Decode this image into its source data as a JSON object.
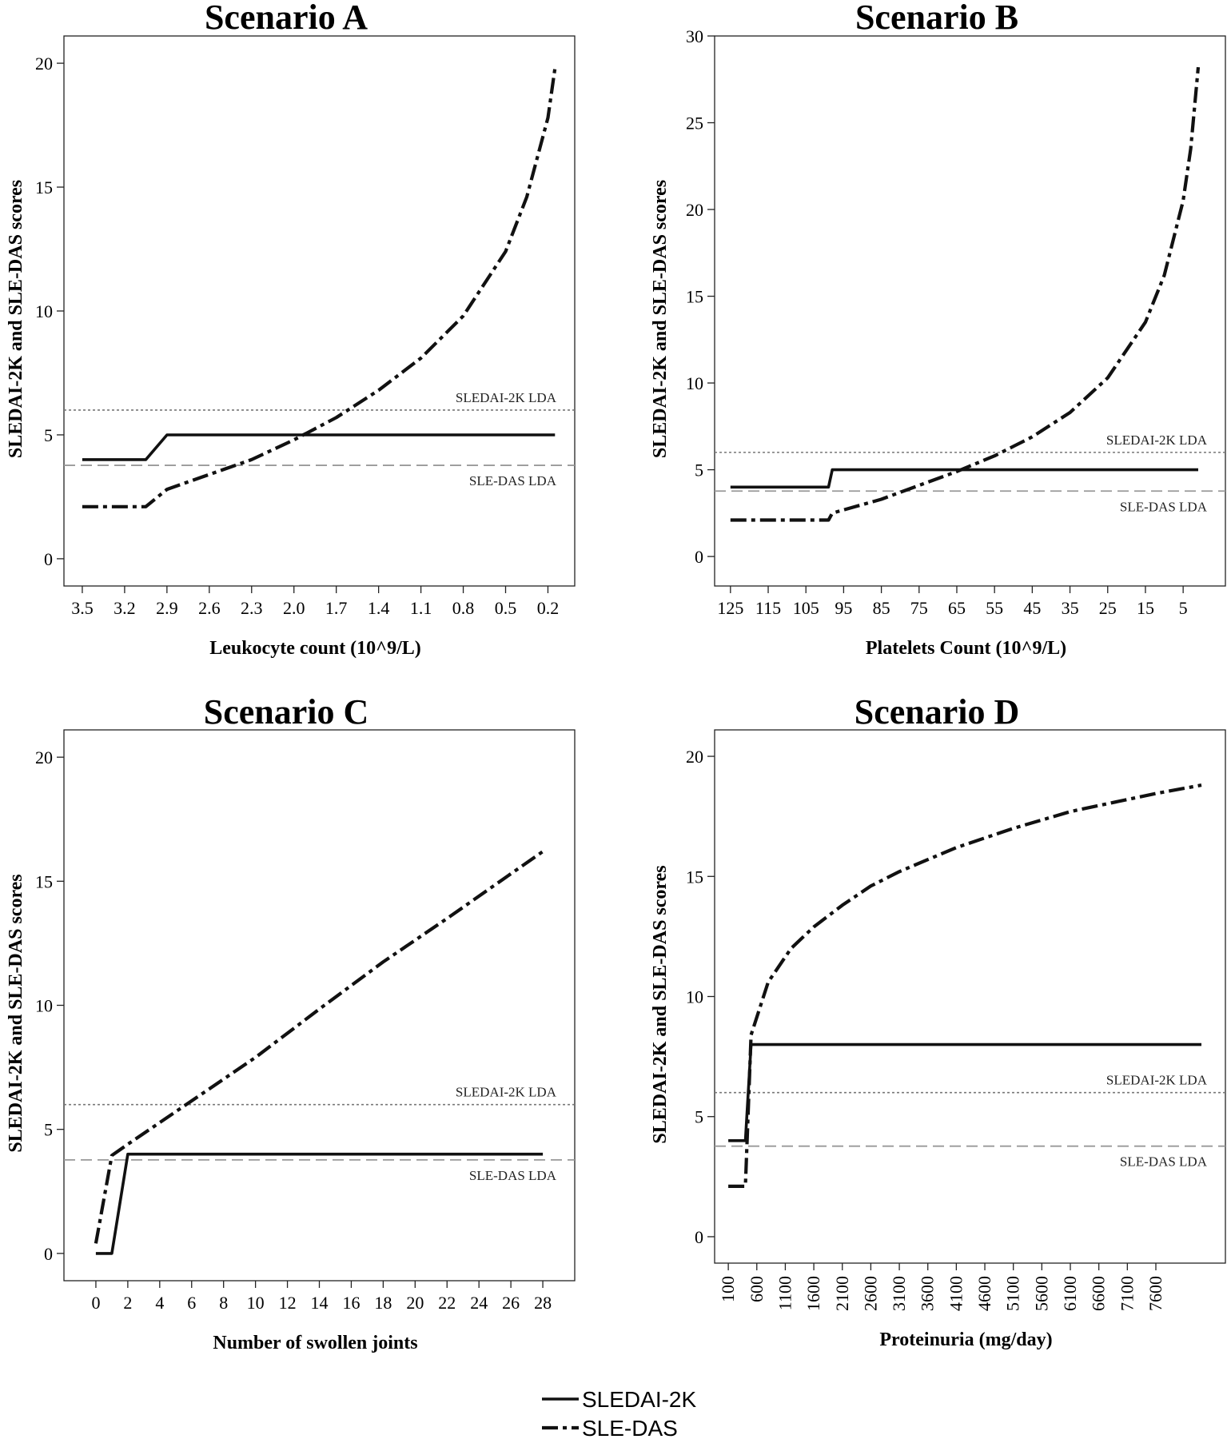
{
  "legend": {
    "items": [
      {
        "label": "SLEDAI-2K",
        "style": "solid"
      },
      {
        "label": "SLE-DAS",
        "style": "dash-dot"
      }
    ]
  },
  "chart_data": [
    {
      "type": "line",
      "title": "Scenario A",
      "xlabel": "Leukocyte count (10^9/L)",
      "ylabel": "SLEDAI-2K and SLE-DAS scores",
      "x_reversed": true,
      "xlim": [
        3.63,
        0.01
      ],
      "ylim": [
        -1.1,
        21.1
      ],
      "xticks": [
        3.5,
        3.2,
        2.9,
        2.6,
        2.3,
        2.0,
        1.7,
        1.4,
        1.1,
        0.8,
        0.5,
        0.2
      ],
      "xtick_labels": [
        "3.5",
        "3.2",
        "2.9",
        "2.6",
        "2.3",
        "2.0",
        "1.7",
        "1.4",
        "1.1",
        "0.8",
        "0.5",
        "0.2"
      ],
      "yticks": [
        0,
        5,
        10,
        15,
        20
      ],
      "ytick_labels": [
        "0",
        "5",
        "10",
        "15",
        "20"
      ],
      "series": [
        {
          "name": "SLEDAI-2K",
          "style": "solid",
          "x": [
            3.5,
            3.05,
            2.9,
            0.15
          ],
          "y": [
            4,
            4,
            5,
            5
          ]
        },
        {
          "name": "SLE-DAS",
          "style": "dash-dot",
          "x": [
            3.5,
            3.05,
            2.9,
            2.6,
            2.3,
            2.0,
            1.7,
            1.4,
            1.1,
            0.8,
            0.5,
            0.35,
            0.2,
            0.15
          ],
          "y": [
            2.1,
            2.1,
            2.8,
            3.4,
            4.0,
            4.8,
            5.7,
            6.8,
            8.1,
            9.8,
            12.4,
            14.6,
            17.8,
            19.8
          ]
        }
      ],
      "lda_lines": [
        {
          "label": "SLEDAI-2K LDA",
          "y": 6.0,
          "style": "dotted"
        },
        {
          "label": "SLE-DAS LDA",
          "y": 3.77,
          "style": "dashed"
        }
      ]
    },
    {
      "type": "line",
      "title": "Scenario B",
      "xlabel": "Platelets Count (10^9/L)",
      "ylabel": "SLEDAI-2K and SLE-DAS scores",
      "x_reversed": true,
      "xlim": [
        129.2,
        -6.2
      ],
      "ylim": [
        -1.7,
        30.0
      ],
      "xticks": [
        125,
        115,
        105,
        95,
        85,
        75,
        65,
        55,
        45,
        35,
        25,
        15,
        5
      ],
      "xtick_labels": [
        "125",
        "115",
        "105",
        "95",
        "85",
        "75",
        "65",
        "55",
        "45",
        "35",
        "25",
        "15",
        "5"
      ],
      "yticks": [
        0,
        5,
        10,
        15,
        20,
        25,
        30
      ],
      "ytick_labels": [
        "0",
        "5",
        "10",
        "15",
        "20",
        "25",
        "30"
      ],
      "series": [
        {
          "name": "SLEDAI-2K",
          "style": "solid",
          "x": [
            125,
            99,
            98,
            1
          ],
          "y": [
            4,
            4,
            5,
            5
          ]
        },
        {
          "name": "SLE-DAS",
          "style": "dash-dot",
          "x": [
            125,
            99,
            98,
            85,
            75,
            65,
            55,
            45,
            35,
            25,
            15,
            10,
            5,
            3,
            1
          ],
          "y": [
            2.1,
            2.1,
            2.5,
            3.3,
            4.1,
            4.9,
            5.8,
            6.9,
            8.3,
            10.3,
            13.5,
            16.2,
            20.5,
            23.5,
            28.2
          ]
        }
      ],
      "lda_lines": [
        {
          "label": "SLEDAI-2K LDA",
          "y": 6.0,
          "style": "dotted"
        },
        {
          "label": "SLE-DAS LDA",
          "y": 3.77,
          "style": "dashed"
        }
      ]
    },
    {
      "type": "line",
      "title": "Scenario C",
      "xlabel": "Number of swollen joints",
      "ylabel": "SLEDAI-2K and SLE-DAS scores",
      "x_reversed": false,
      "xlim": [
        -2.0,
        30.0
      ],
      "ylim": [
        -1.1,
        21.1
      ],
      "xticks": [
        0,
        2,
        4,
        6,
        8,
        10,
        12,
        14,
        16,
        18,
        20,
        22,
        24,
        26,
        28
      ],
      "xtick_labels": [
        "0",
        "2",
        "4",
        "6",
        "8",
        "10",
        "12",
        "14",
        "16",
        "18",
        "20",
        "22",
        "24",
        "26",
        "28"
      ],
      "yticks": [
        0,
        5,
        10,
        15,
        20
      ],
      "ytick_labels": [
        "0",
        "5",
        "10",
        "15",
        "20"
      ],
      "series": [
        {
          "name": "SLEDAI-2K",
          "style": "solid",
          "x": [
            0,
            1,
            2,
            28
          ],
          "y": [
            0,
            0,
            4,
            4
          ]
        },
        {
          "name": "SLE-DAS",
          "style": "dash-dot",
          "x": [
            0,
            1,
            2,
            6,
            10,
            14,
            18,
            22,
            26,
            28
          ],
          "y": [
            0.4,
            3.95,
            4.4,
            6.15,
            7.9,
            9.85,
            11.75,
            13.5,
            15.3,
            16.2
          ]
        }
      ],
      "lda_lines": [
        {
          "label": "SLEDAI-2K LDA",
          "y": 6.0,
          "style": "dotted"
        },
        {
          "label": "SLE-DAS LDA",
          "y": 3.77,
          "style": "dashed"
        }
      ]
    },
    {
      "type": "line",
      "title": "Scenario D",
      "xlabel": "Proteinuria (mg/day)",
      "ylabel": "SLEDAI-2K and SLE-DAS scores",
      "x_reversed": false,
      "xlim": [
        -140,
        8820
      ],
      "ylim": [
        -1.1,
        21.1
      ],
      "xticks": [
        100,
        600,
        1100,
        1600,
        2100,
        2600,
        3100,
        3600,
        4100,
        4600,
        5100,
        5600,
        6100,
        6600,
        7100,
        7600
      ],
      "xtick_labels": [
        "100",
        "600",
        "1100",
        "1600",
        "2100",
        "2600",
        "3100",
        "3600",
        "4100",
        "4600",
        "5100",
        "5600",
        "6100",
        "6600",
        "7100",
        "7600"
      ],
      "yticks": [
        0,
        5,
        10,
        15,
        20
      ],
      "ytick_labels": [
        "0",
        "5",
        "10",
        "15",
        "20"
      ],
      "series": [
        {
          "name": "SLEDAI-2K",
          "style": "solid",
          "x": [
            100,
            400,
            500,
            8400
          ],
          "y": [
            4,
            4,
            8,
            8
          ]
        },
        {
          "name": "SLE-DAS",
          "style": "dash-dot",
          "x": [
            100,
            400,
            500,
            800,
            1200,
            1600,
            2100,
            2600,
            3100,
            3600,
            4100,
            4600,
            5100,
            5600,
            6100,
            6600,
            7100,
            7600,
            8400
          ],
          "y": [
            2.1,
            2.1,
            8.4,
            10.6,
            12.0,
            12.9,
            13.8,
            14.6,
            15.2,
            15.7,
            16.2,
            16.6,
            17.0,
            17.35,
            17.7,
            17.95,
            18.2,
            18.45,
            18.8
          ]
        }
      ],
      "lda_lines": [
        {
          "label": "SLEDAI-2K LDA",
          "y": 6.0,
          "style": "dotted"
        },
        {
          "label": "SLE-DAS LDA",
          "y": 3.77,
          "style": "dashed"
        }
      ]
    }
  ]
}
